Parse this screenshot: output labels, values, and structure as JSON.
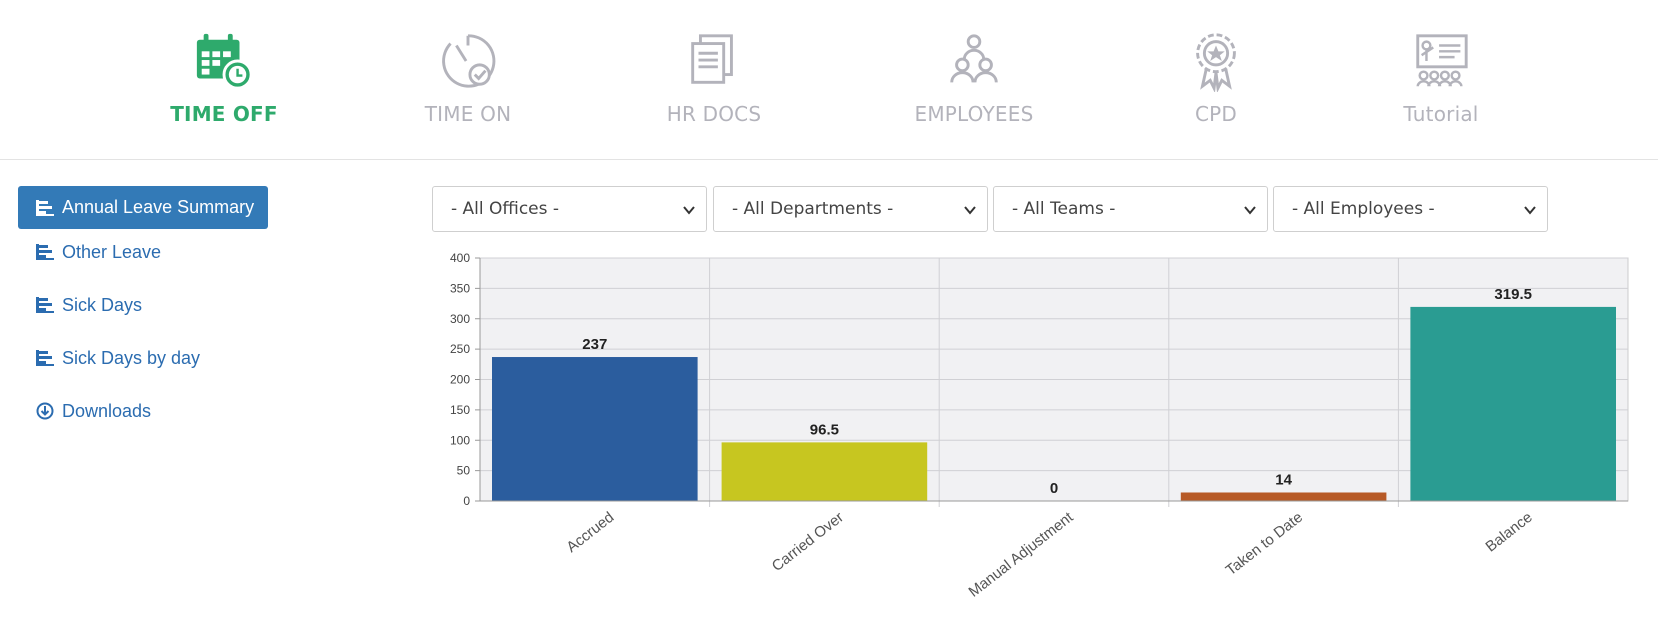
{
  "nav": {
    "items": [
      {
        "label": "TIME OFF",
        "icon": "calendar-clock-icon",
        "active": true
      },
      {
        "label": "TIME ON",
        "icon": "stopwatch-icon",
        "active": false
      },
      {
        "label": "HR DOCS",
        "icon": "documents-icon",
        "active": false
      },
      {
        "label": "EMPLOYEES",
        "icon": "people-group-icon",
        "active": false
      },
      {
        "label": "CPD",
        "icon": "award-badge-icon",
        "active": false
      },
      {
        "label": "Tutorial",
        "icon": "presentation-icon",
        "active": false
      }
    ]
  },
  "sidebar": {
    "items": [
      {
        "label": "Annual Leave Summary",
        "icon": "bar-list-icon",
        "active": true
      },
      {
        "label": "Other Leave",
        "icon": "bar-list-icon",
        "active": false
      },
      {
        "label": "Sick Days",
        "icon": "bar-list-icon",
        "active": false
      },
      {
        "label": "Sick Days by day",
        "icon": "bar-list-icon",
        "active": false
      },
      {
        "label": "Downloads",
        "icon": "download-circle-icon",
        "active": false
      }
    ]
  },
  "filters": {
    "offices": "- All Offices -",
    "departments": "- All Departments -",
    "teams": "- All Teams -",
    "employees": "- All Employees -"
  },
  "colors": {
    "active_nav": "#2eaa6c",
    "inactive_nav": "#b3b3bb",
    "sidebar_active_bg": "#337ab7",
    "sidebar_link": "#2b6cb0"
  },
  "chart_data": {
    "type": "bar",
    "categories": [
      "Accrued",
      "Carried Over",
      "Manual Adjustment",
      "Taken to Date",
      "Balance"
    ],
    "values": [
      237,
      96.5,
      0,
      14,
      319.5
    ],
    "value_labels": [
      "237",
      "96.5",
      "0",
      "14",
      "319.5"
    ],
    "colors": [
      "#2b5d9e",
      "#c7c620",
      "#7a3aa8",
      "#b75a26",
      "#2a9c92"
    ],
    "ylim": [
      0,
      400
    ],
    "yticks": [
      "0",
      "50",
      "100",
      "150",
      "200",
      "250",
      "300",
      "350",
      "400"
    ],
    "grid": true,
    "legend": "none",
    "title": "",
    "xlabel": "",
    "ylabel": ""
  }
}
